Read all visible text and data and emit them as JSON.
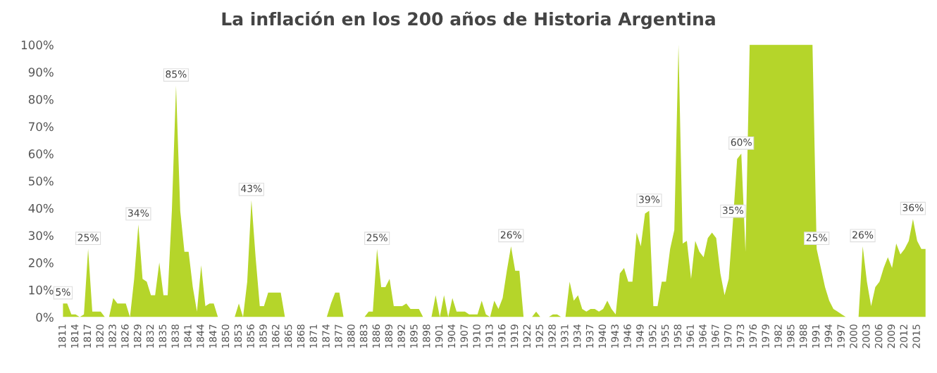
{
  "chart_data": {
    "type": "area",
    "title": "La inflación en los 200 años de Historia Argentina",
    "categories": [
      "1811",
      null,
      null,
      "1814",
      null,
      null,
      "1817",
      null,
      null,
      "1820",
      null,
      null,
      "1823",
      null,
      null,
      "1826",
      null,
      null,
      "1829",
      null,
      null,
      "1832",
      null,
      null,
      "1835",
      null,
      null,
      "1838",
      null,
      null,
      "1841",
      null,
      null,
      "1844",
      null,
      null,
      "1847",
      null,
      null,
      "1850",
      null,
      null,
      "1853",
      null,
      null,
      "1856",
      null,
      null,
      "1859",
      null,
      null,
      "1862",
      null,
      null,
      "1865",
      null,
      null,
      "1868",
      null,
      null,
      "1871",
      null,
      null,
      "1874",
      null,
      null,
      "1877",
      null,
      null,
      "1880",
      null,
      null,
      "1883",
      null,
      null,
      "1886",
      null,
      null,
      "1889",
      null,
      null,
      "1892",
      null,
      null,
      "1895",
      null,
      null,
      "1898",
      null,
      null,
      "1901",
      null,
      null,
      "1904",
      null,
      null,
      "1907",
      null,
      null,
      "1910",
      null,
      null,
      "1913",
      null,
      null,
      "1916",
      null,
      null,
      "1919",
      null,
      null,
      "1922",
      null,
      null,
      "1925",
      null,
      null,
      "1928",
      null,
      null,
      "1931",
      null,
      null,
      "1934",
      null,
      null,
      "1937",
      null,
      null,
      "1940",
      null,
      null,
      "1943",
      null,
      null,
      "1946",
      null,
      null,
      "1949",
      null,
      null,
      "1952",
      null,
      null,
      "1955",
      null,
      null,
      "1958",
      null,
      null,
      "1961",
      null,
      null,
      "1964",
      null,
      null,
      "1967",
      null,
      null,
      "1970",
      null,
      null,
      "1973",
      null,
      null,
      "1976",
      null,
      null,
      "1979",
      null,
      null,
      "1982",
      null,
      null,
      "1985",
      null,
      null,
      "1988",
      null,
      null,
      "1991",
      null,
      null,
      "1994",
      null,
      null,
      "1997",
      null,
      null,
      "2000",
      null,
      null,
      "2003",
      null,
      null,
      "2006",
      null,
      null,
      "2009",
      null,
      null,
      "2012",
      null,
      null,
      "2015",
      null,
      null
    ],
    "values": [
      5,
      5,
      1,
      1,
      0,
      1,
      25,
      2,
      2,
      2,
      0,
      0,
      7,
      5,
      5,
      5,
      0,
      14,
      34,
      14,
      13,
      8,
      8,
      20,
      8,
      8,
      39,
      85,
      39,
      24,
      24,
      11,
      2,
      19,
      4,
      5,
      5,
      0,
      0,
      0,
      0,
      0,
      5,
      0,
      13,
      43,
      22,
      4,
      4,
      9,
      9,
      9,
      9,
      0,
      0,
      0,
      0,
      0,
      0,
      0,
      0,
      0,
      0,
      0,
      5,
      9,
      9,
      0,
      0,
      0,
      0,
      0,
      0,
      2,
      2,
      25,
      11,
      11,
      14,
      4,
      4,
      4,
      5,
      3,
      3,
      3,
      0,
      0,
      0,
      8,
      0,
      8,
      0,
      7,
      2,
      2,
      2,
      1,
      1,
      1,
      6,
      1,
      0,
      6,
      3,
      7,
      17,
      26,
      17,
      17,
      0,
      0,
      0,
      2,
      0,
      0,
      0,
      1,
      1,
      0,
      0,
      13,
      6,
      8,
      3,
      2,
      3,
      3,
      2,
      3,
      6,
      3,
      1,
      16,
      18,
      13,
      13,
      31,
      26,
      38,
      39,
      4,
      4,
      13,
      13,
      25,
      32,
      100,
      27,
      28,
      14,
      28,
      24,
      22,
      29,
      31,
      29,
      16,
      8,
      14,
      35,
      58,
      60,
      24,
      100,
      100,
      100,
      100,
      100,
      100,
      100,
      100,
      100,
      100,
      100,
      100,
      100,
      100,
      100,
      100,
      25,
      18,
      11,
      6,
      3,
      2,
      1,
      0,
      0,
      0,
      0,
      26,
      13,
      4,
      11,
      13,
      18,
      22,
      18,
      27,
      23,
      25,
      28,
      36,
      28,
      25,
      25
    ],
    "value_labels": [
      "5%",
      null,
      null,
      null,
      null,
      null,
      "25%",
      null,
      null,
      null,
      null,
      null,
      null,
      null,
      null,
      null,
      null,
      null,
      "34%",
      null,
      null,
      null,
      null,
      null,
      null,
      null,
      null,
      "85%",
      null,
      null,
      null,
      null,
      null,
      null,
      null,
      null,
      null,
      null,
      null,
      null,
      null,
      null,
      null,
      null,
      null,
      "43%",
      null,
      null,
      null,
      null,
      null,
      null,
      null,
      null,
      null,
      null,
      null,
      null,
      null,
      null,
      null,
      null,
      null,
      null,
      null,
      null,
      null,
      null,
      null,
      null,
      null,
      null,
      null,
      null,
      null,
      "25%",
      null,
      null,
      null,
      null,
      null,
      null,
      null,
      null,
      null,
      null,
      null,
      null,
      null,
      null,
      null,
      null,
      null,
      null,
      null,
      null,
      null,
      null,
      null,
      null,
      null,
      null,
      null,
      null,
      null,
      null,
      null,
      "26%",
      null,
      null,
      null,
      null,
      null,
      null,
      null,
      null,
      null,
      null,
      null,
      null,
      null,
      null,
      null,
      null,
      null,
      null,
      null,
      null,
      null,
      null,
      null,
      null,
      null,
      null,
      null,
      null,
      null,
      null,
      null,
      null,
      "39%",
      null,
      null,
      null,
      null,
      null,
      null,
      null,
      null,
      null,
      null,
      null,
      null,
      null,
      null,
      null,
      null,
      null,
      null,
      null,
      "35%",
      null,
      "60%",
      null,
      null,
      null,
      null,
      null,
      null,
      null,
      null,
      null,
      null,
      null,
      null,
      null,
      null,
      null,
      null,
      null,
      "25%",
      null,
      null,
      null,
      null,
      null,
      null,
      null,
      null,
      null,
      null,
      "26%",
      null,
      null,
      null,
      null,
      null,
      null,
      null,
      null,
      null,
      null,
      null,
      "36%",
      null,
      null,
      null
    ],
    "color": "#b5d52a",
    "ylim": [
      0,
      100
    ],
    "yticks": [
      {
        "value": 0,
        "label": "0%"
      },
      {
        "value": 10,
        "label": "10%"
      },
      {
        "value": 20,
        "label": "20%"
      },
      {
        "value": 30,
        "label": "30%"
      },
      {
        "value": 40,
        "label": "40%"
      },
      {
        "value": 50,
        "label": "50%"
      },
      {
        "value": 60,
        "label": "60%"
      },
      {
        "value": 70,
        "label": "70%"
      },
      {
        "value": 80,
        "label": "80%"
      },
      {
        "value": 90,
        "label": "90%"
      },
      {
        "value": 100,
        "label": "100%"
      }
    ]
  }
}
